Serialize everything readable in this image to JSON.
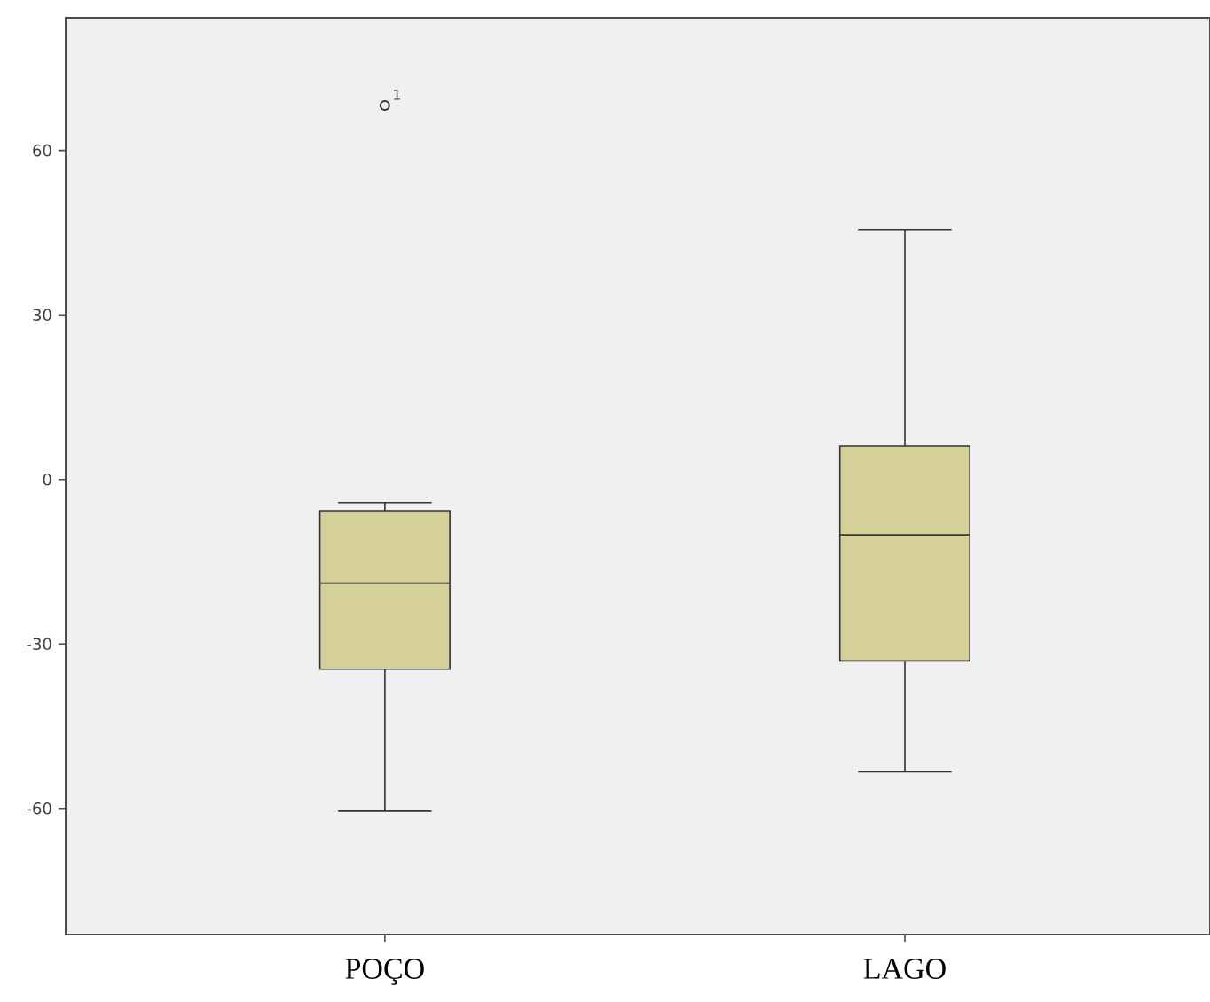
{
  "chart_data": {
    "type": "box",
    "categories": [
      "POÇO",
      "LAGO"
    ],
    "color": "#d5cf98",
    "boxes": [
      {
        "low": -60.5,
        "q1": -34.6,
        "median": -18.9,
        "q3": -5.7,
        "high": -4.2,
        "outliers": [
          68.2
        ]
      },
      {
        "low": -53.3,
        "q1": -33.1,
        "median": -10.1,
        "q3": 6.1,
        "high": 45.6
      }
    ],
    "ylim": [
      -83,
      84.2
    ],
    "yticks": [
      60,
      30,
      0,
      -30,
      -60
    ],
    "grid": false,
    "annotations": [
      "1"
    ]
  }
}
